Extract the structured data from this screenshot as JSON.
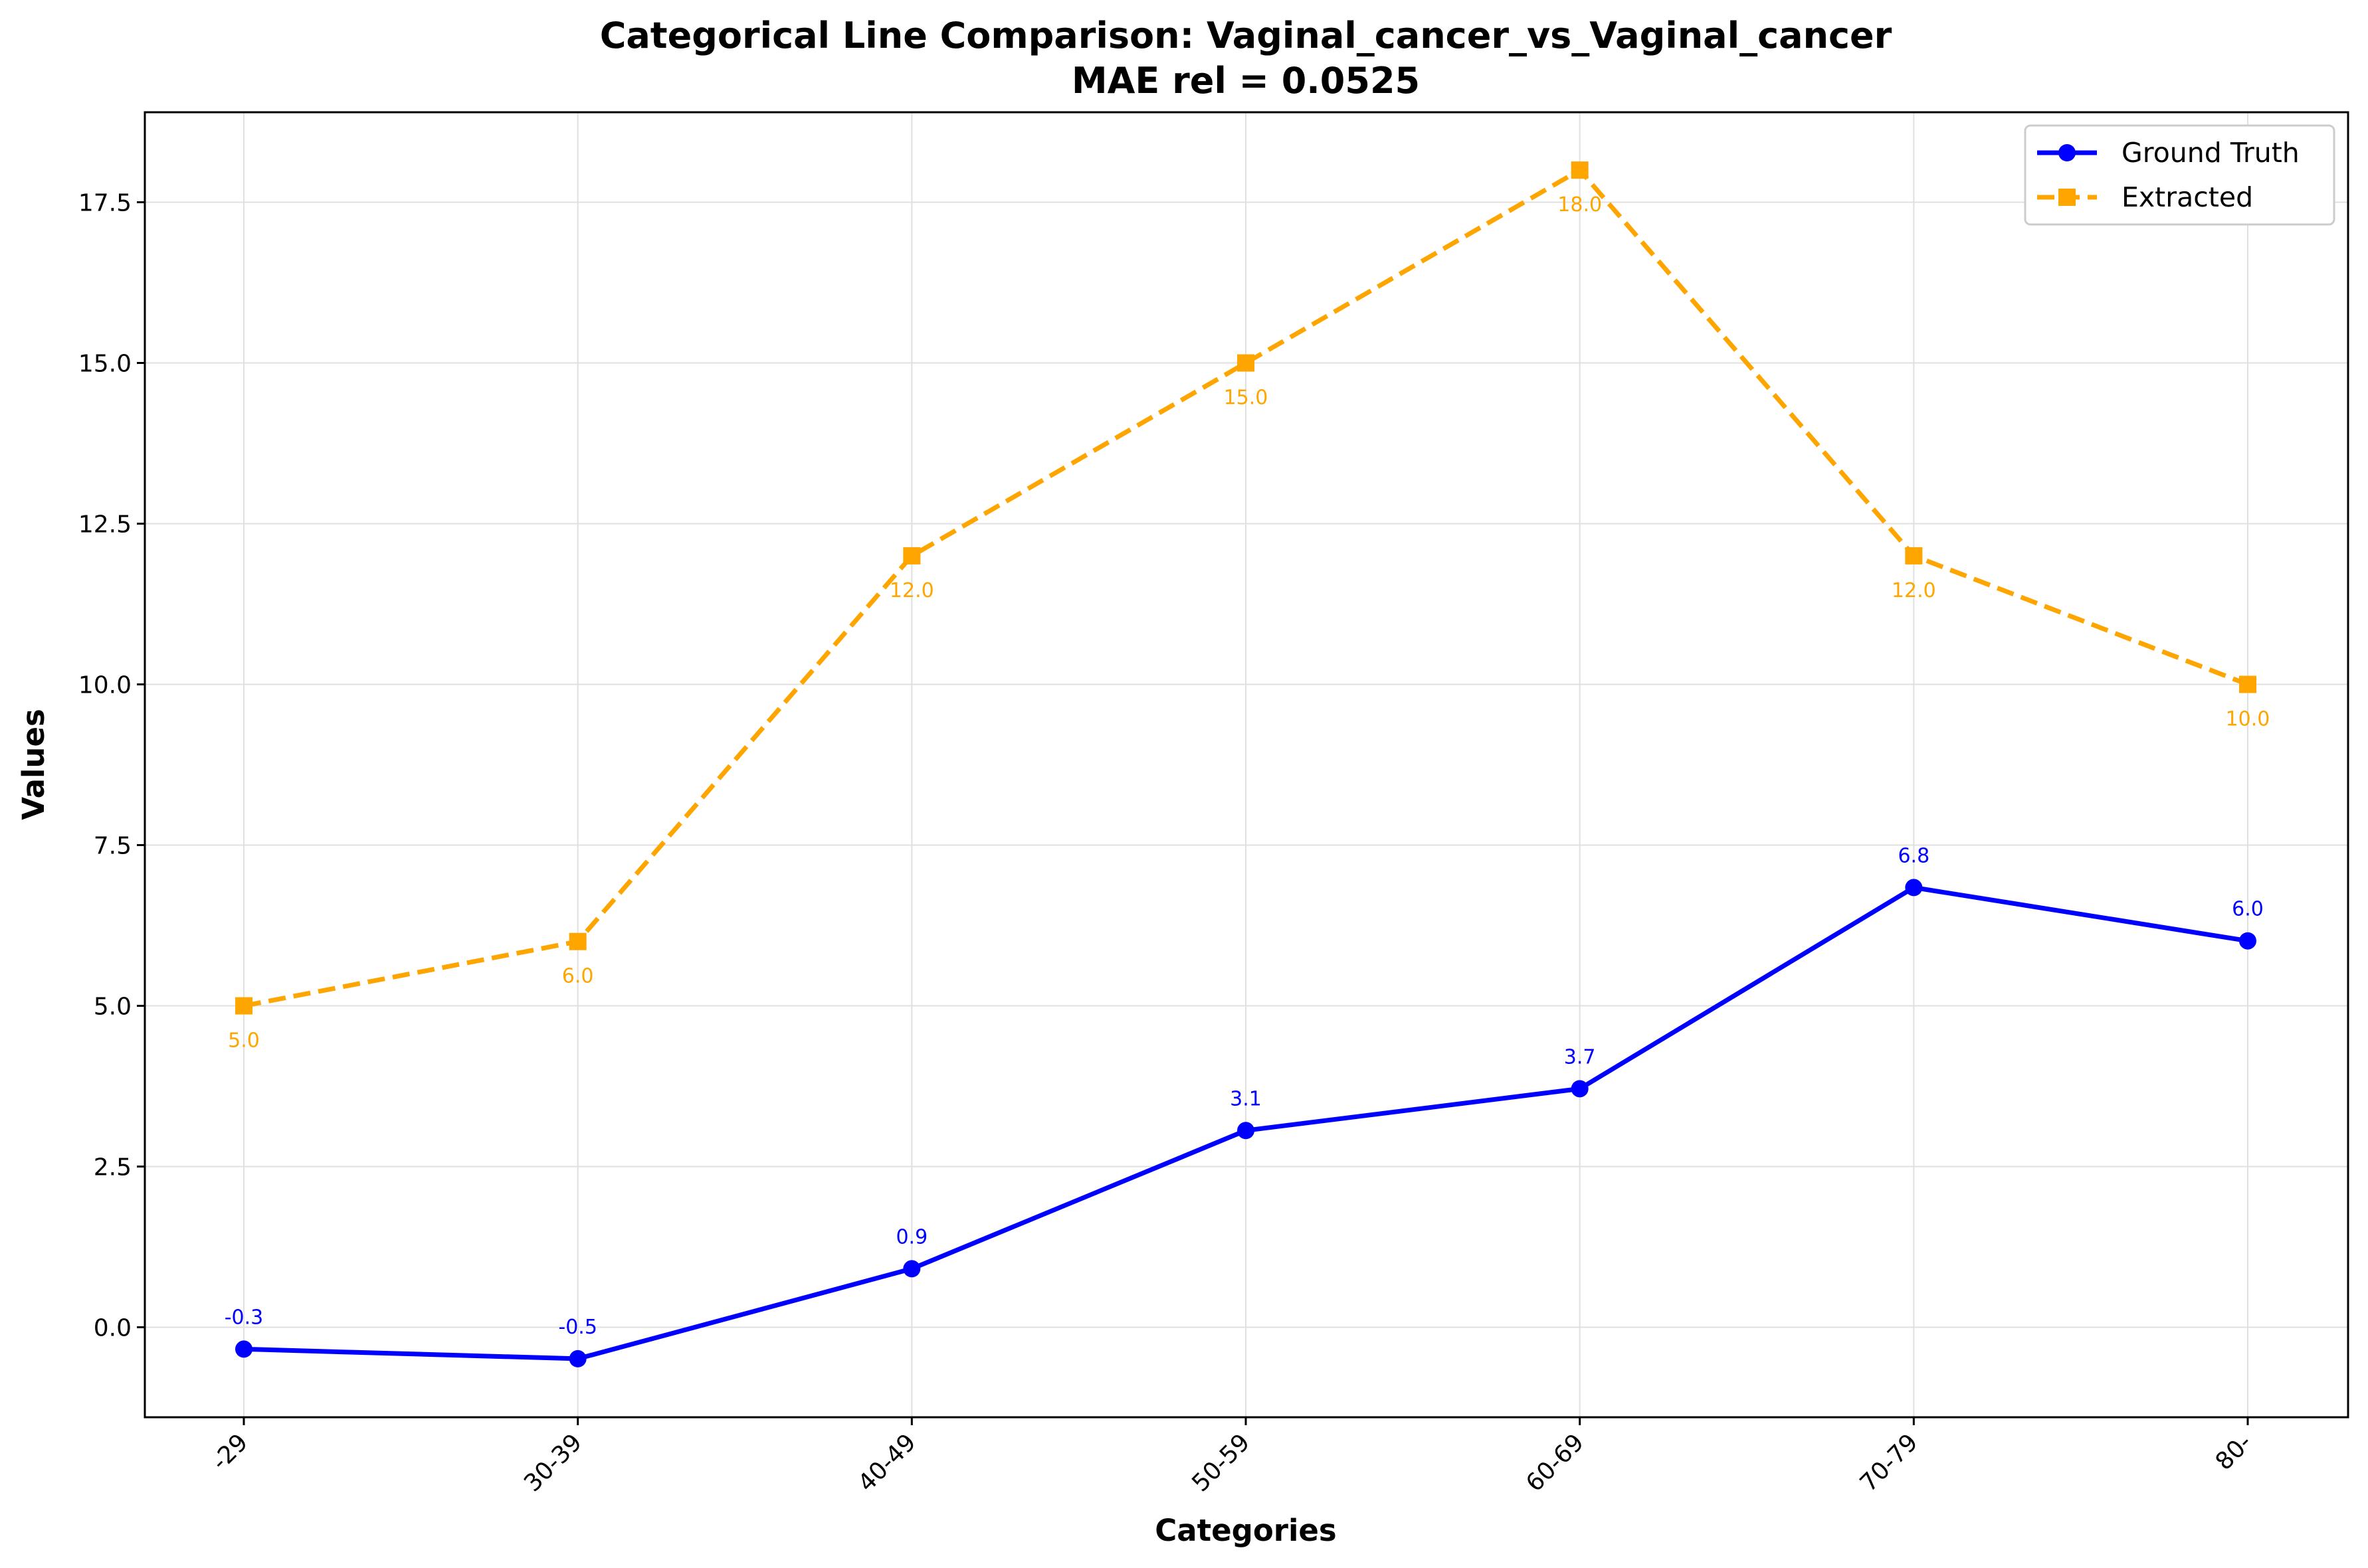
{
  "chart_data": {
    "type": "line",
    "title": "Categorical Line Comparison: Vaginal_cancer_vs_Vaginal_cancer",
    "subtitle": "MAE rel = 0.0525",
    "xlabel": "Categories",
    "ylabel": "Values",
    "categories": [
      "-29",
      "30-39",
      "40-49",
      "50-59",
      "60-69",
      "70-79",
      "80-"
    ],
    "ylim": [
      -1.4,
      18.9
    ],
    "yticks": [
      0.0,
      2.5,
      5.0,
      7.5,
      10.0,
      12.5,
      15.0,
      17.5
    ],
    "ytick_labels": [
      "0.0",
      "2.5",
      "5.0",
      "7.5",
      "10.0",
      "12.5",
      "15.0",
      "17.5"
    ],
    "grid": true,
    "legend_position": "top-right",
    "series": [
      {
        "name": "Ground Truth",
        "color": "#0000ff",
        "line_style": "solid",
        "marker": "circle",
        "label_position": "above",
        "values": [
          -0.34,
          -0.49,
          0.91,
          3.06,
          3.71,
          6.84,
          6.01
        ],
        "labels": [
          "-0.3",
          "-0.5",
          "0.9",
          "3.1",
          "3.7",
          "6.8",
          "6.0"
        ]
      },
      {
        "name": "Extracted",
        "color": "#ffa500",
        "line_style": "dashed",
        "marker": "square",
        "label_position": "below",
        "values": [
          5.0,
          6.0,
          12.0,
          15.0,
          18.0,
          12.0,
          10.0
        ],
        "labels": [
          "5.0",
          "6.0",
          "12.0",
          "15.0",
          "18.0",
          "12.0",
          "10.0"
        ]
      }
    ]
  }
}
